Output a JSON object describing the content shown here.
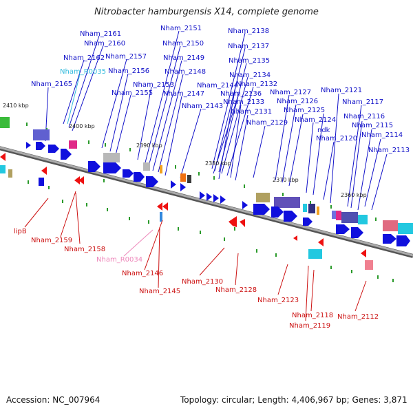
{
  "title": "Nitrobacter hamburgensis X14, complete genome",
  "accession_text": "Accession: NC_007964",
  "topology_text": "Topology: circular; Length: 4,406,967 bp; Genes: 3,871",
  "colors": {
    "top_label": "#1010c8",
    "rna_label": "#33bbdd",
    "bottom_label": "#cc1010",
    "pseudo_label": "#ee88bb",
    "backbone": "#888888",
    "forward_gene": "#1010dd",
    "reverse_gene": "#ee1111"
  },
  "kbp_ticks": [
    "2410 kbp",
    "2400 kbp",
    "2390 kbp",
    "2380 kbp",
    "2370 kbp",
    "2360 kbp"
  ],
  "top_labels": [
    "Nham_2161",
    "Nham_2160",
    "Nham_2162",
    "Nham_R0035",
    "Nham_2165",
    "Nham_2157",
    "Nham_2156",
    "Nham_2155",
    "Nham_2151",
    "Nham_2150",
    "Nham_2149",
    "Nham_2148",
    "Nham_2153",
    "Nham_2147",
    "Nham_2143",
    "Nham_2144",
    "Nham_2138",
    "Nham_2137",
    "Nham_2135",
    "Nham_2134",
    "Nham_2132",
    "Nham_2136",
    "Nham_2133",
    "Nham_2131",
    "Nham_2127",
    "Nham_2126",
    "Nham_2125",
    "Nham_2129",
    "Nham_2124",
    "ndk",
    "Nham_2120",
    "Nham_2121",
    "Nham_2117",
    "Nham_2116",
    "Nham_2115",
    "Nham_2114",
    "Nham_2113"
  ],
  "bottom_labels": [
    "lipB",
    "Nham_2159",
    "Nham_2158",
    "Nham_R0034",
    "Nham_2146",
    "Nham_2145",
    "Nham_2130",
    "Nham_2128",
    "Nham_2123",
    "Nham_2118",
    "Nham_2119",
    "Nham_2112"
  ]
}
